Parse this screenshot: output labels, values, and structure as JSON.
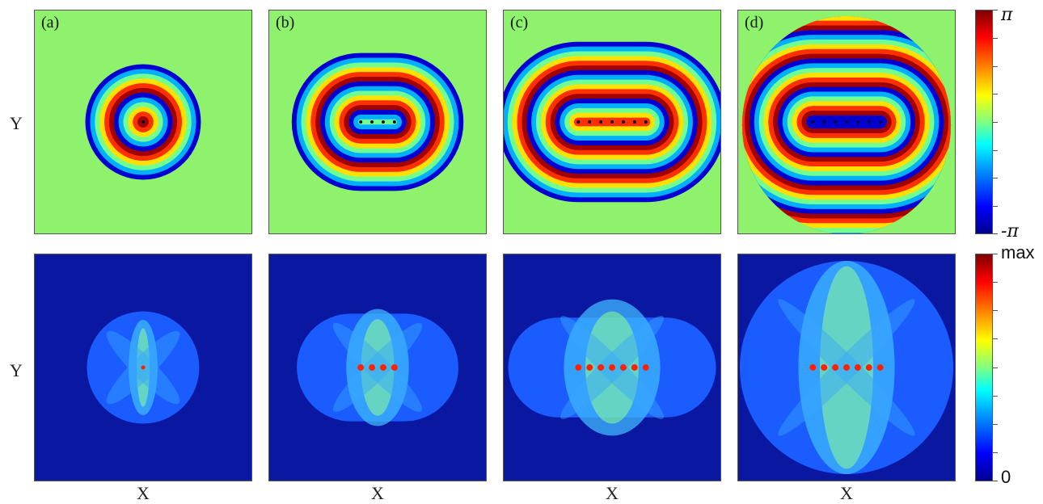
{
  "panels": [
    {
      "label": "(a)",
      "n": 1
    },
    {
      "label": "(b)",
      "n": 4
    },
    {
      "label": "(c)",
      "n": 7
    },
    {
      "label": "(d)",
      "n": 7
    }
  ],
  "axes": {
    "y_label": "Y",
    "x_label": "X"
  },
  "colorbars": {
    "phase": {
      "top": "π",
      "bottom": "-π"
    },
    "amplitude": {
      "top": "max",
      "bottom": "0"
    }
  },
  "colors": {
    "background_phase": "#8ef26c",
    "background_amp": "#0a17a0"
  }
}
